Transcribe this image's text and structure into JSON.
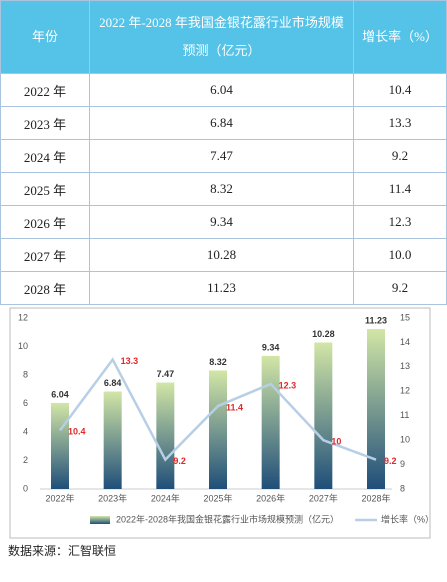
{
  "table": {
    "header": [
      "年份",
      "2022 年-2028 年我国金银花露行业市场规模预测（亿元）",
      "增长率（%）"
    ],
    "rows": [
      [
        "2022 年",
        "6.04",
        "10.4"
      ],
      [
        "2023 年",
        "6.84",
        "13.3"
      ],
      [
        "2024 年",
        "7.47",
        "9.2"
      ],
      [
        "2025 年",
        "8.32",
        "11.4"
      ],
      [
        "2026 年",
        "9.34",
        "12.3"
      ],
      [
        "2027 年",
        "10.28",
        "10.0"
      ],
      [
        "2028 年",
        "11.23",
        "9.2"
      ]
    ]
  },
  "chart_data": {
    "type": "bar-line",
    "categories": [
      "2022年",
      "2023年",
      "2024年",
      "2025年",
      "2026年",
      "2027年",
      "2028年"
    ],
    "series": [
      {
        "name": "2022年-2028年我国金银花露行业市场规模预测（亿元）",
        "type": "bar",
        "color": "#1f4e79",
        "values": [
          6.04,
          6.84,
          7.47,
          8.32,
          9.34,
          10.28,
          11.23
        ]
      },
      {
        "name": "增长率（%）",
        "type": "line",
        "axis": "y2",
        "color": "#b7cfe6",
        "label_color": "#e0282b",
        "values": [
          10.4,
          13.3,
          9.2,
          11.4,
          12.3,
          10,
          9.2
        ]
      }
    ],
    "ylim": [
      0,
      12
    ],
    "yticks": [
      0,
      2,
      4,
      6,
      8,
      10,
      12
    ],
    "y2lim": [
      8,
      15
    ],
    "y2ticks": [
      8,
      9,
      10,
      11,
      12,
      13,
      14,
      15
    ],
    "grid": false
  },
  "source": "数据来源：汇智联恒"
}
